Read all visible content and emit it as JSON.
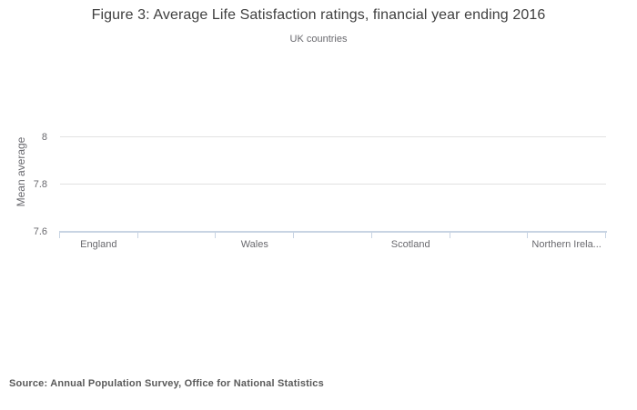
{
  "figure": {
    "title": "Figure 3: Average Life Satisfaction ratings, financial year ending 2016",
    "subtitle": "UK countries",
    "source_line": "Source: Annual Population Survey, Office for National Statistics"
  },
  "chart_data": {
    "type": "bar",
    "title": "Figure 3: Average Life Satisfaction ratings, financial year ending 2016",
    "subtitle": "UK countries",
    "categories": [
      "England",
      "Wales",
      "Scotland",
      "Northern Ireland"
    ],
    "x_tick_labels_displayed": [
      "England",
      "Wales",
      "Scotland",
      "Northern Irela..."
    ],
    "series": [
      {
        "name": "Mean average",
        "values": [
          null,
          null,
          null,
          null
        ]
      }
    ],
    "bars_visible": false,
    "xlabel": "",
    "ylabel": "Mean average",
    "ytick_labels": [
      "7.6",
      "7.8",
      "8"
    ],
    "ytick_values": [
      7.6,
      7.8,
      8
    ],
    "ylim": [
      7.6,
      8.0
    ],
    "grid": true,
    "legend_position": "none",
    "colors": {
      "background": "#ffffff",
      "gridline": "#e1e1e1",
      "axis_line": "#c8d4e3",
      "tick_text": "#69696e",
      "title_text": "#3f3f3f",
      "source_text": "#595959"
    }
  }
}
